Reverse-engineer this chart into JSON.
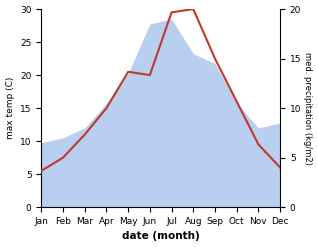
{
  "months": [
    "Jan",
    "Feb",
    "Mar",
    "Apr",
    "May",
    "Jun",
    "Jul",
    "Aug",
    "Sep",
    "Oct",
    "Nov",
    "Dec"
  ],
  "temp": [
    5.5,
    7.5,
    11.0,
    15.0,
    20.5,
    20.0,
    29.5,
    30.0,
    22.5,
    16.0,
    9.5,
    6.0
  ],
  "precip": [
    6.5,
    7.0,
    8.0,
    10.5,
    13.5,
    18.5,
    19.0,
    15.5,
    14.5,
    10.5,
    8.0,
    8.5
  ],
  "temp_color": "#c0392b",
  "precip_color": "#b8cff0",
  "ylim_left": [
    0,
    30
  ],
  "ylim_right": [
    0,
    20
  ],
  "yticks_left": [
    0,
    5,
    10,
    15,
    20,
    25,
    30
  ],
  "yticks_right": [
    0,
    5,
    10,
    15,
    20
  ],
  "xlabel": "date (month)",
  "ylabel_left": "max temp (C)",
  "ylabel_right": "med. precipitation (kg/m2)",
  "bg_color": "#ffffff"
}
